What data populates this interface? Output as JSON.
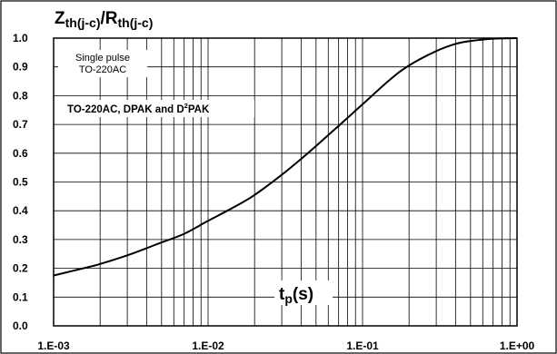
{
  "chart_data": {
    "type": "line",
    "title": {
      "main_z": "Z",
      "sub_z": "th(j-c)",
      "sep": "/R",
      "sub_r": "th(j-c)"
    },
    "xlabel": {
      "main": "t",
      "sub": "p",
      "tail": "(s)"
    },
    "xscale": "log",
    "xlim": [
      0.001,
      1
    ],
    "ylim": [
      0,
      1
    ],
    "grid": true,
    "x_ticks": [
      0.001,
      0.01,
      0.1,
      1
    ],
    "x_tick_labels": [
      "1.E-03",
      "1.E-02",
      "1.E-01",
      "1.E+00"
    ],
    "y_ticks": [
      0,
      0.1,
      0.2,
      0.3,
      0.4,
      0.5,
      0.6,
      0.7,
      0.8,
      0.9,
      1.0
    ],
    "y_tick_labels": [
      "0.0",
      "0.1",
      "0.2",
      "0.3",
      "0.4",
      "0.5",
      "0.6",
      "0.7",
      "0.8",
      "0.9",
      "1.0"
    ],
    "annotations": {
      "note_line1": "Single pulse",
      "note_line2": "TO-220AC",
      "series_main": "TO-220AC, DPAK and D",
      "series_sup": "2",
      "series_tail": "PAK"
    },
    "series": [
      {
        "x": [
          0.001,
          0.0013,
          0.0017,
          0.002,
          0.003,
          0.004,
          0.005,
          0.007,
          0.01,
          0.015,
          0.02,
          0.03,
          0.04,
          0.05,
          0.07,
          0.1,
          0.15,
          0.2,
          0.3,
          0.4,
          0.5,
          0.7,
          1.0
        ],
        "y": [
          0.175,
          0.19,
          0.205,
          0.215,
          0.245,
          0.27,
          0.29,
          0.32,
          0.365,
          0.415,
          0.455,
          0.525,
          0.58,
          0.625,
          0.695,
          0.77,
          0.855,
          0.905,
          0.955,
          0.98,
          0.99,
          0.998,
          1.0
        ]
      }
    ]
  }
}
